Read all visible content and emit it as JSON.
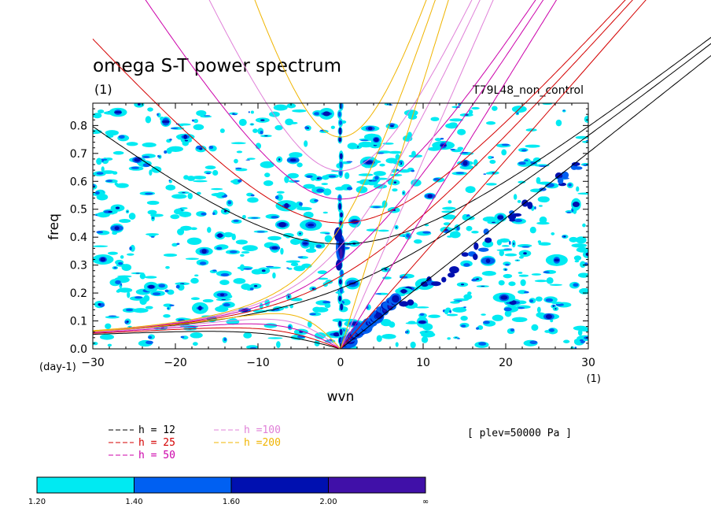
{
  "chart_data": {
    "type": "heatmap",
    "title": "omega S-T power spectrum",
    "subtitle_left": "(1)",
    "subtitle_right": "T79L48_non_control",
    "xlabel": "wvn",
    "ylabel": "freq",
    "x_unit": "(1)",
    "y_unit": "(day-1)",
    "xlim": [
      -30,
      30
    ],
    "ylim": [
      0,
      0.88
    ],
    "xticks": [
      -30,
      -20,
      -10,
      0,
      10,
      20,
      30
    ],
    "yticks": [
      0.0,
      0.1,
      0.2,
      0.3,
      0.4,
      0.5,
      0.6,
      0.7,
      0.8
    ],
    "level_note": "[ plev=50000 Pa ]",
    "legend": [
      {
        "label": "h = 12",
        "h": 12,
        "color": "#000000"
      },
      {
        "label": "h = 25",
        "h": 25,
        "color": "#d40000"
      },
      {
        "label": "h = 50",
        "h": 50,
        "color": "#cc00aa"
      },
      {
        "label": "h =100",
        "h": 100,
        "color": "#e080d8"
      },
      {
        "label": "h =200",
        "h": 200,
        "color": "#f0b400"
      }
    ],
    "colorbar": {
      "boundaries": [
        "1.20",
        "1.40",
        "1.60",
        "2.00",
        "∞"
      ],
      "colors": [
        "#00eaf2",
        "#0060f2",
        "#0010b0",
        "#4010a8"
      ]
    }
  }
}
